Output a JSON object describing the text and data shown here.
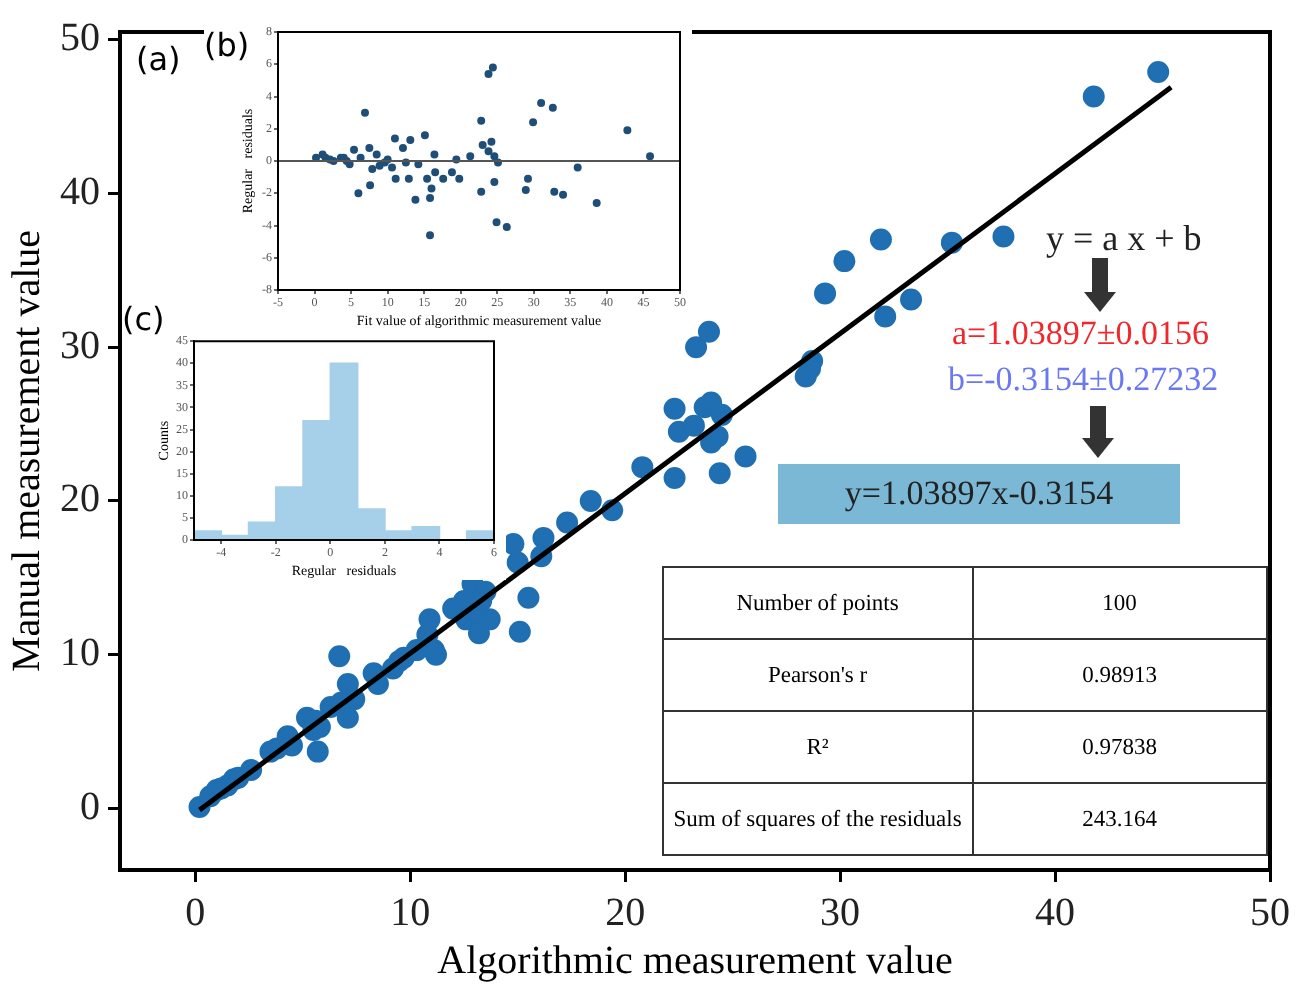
{
  "chart_data": [
    {
      "type": "scatter",
      "xlabel": "Algorithmic measurement value",
      "ylabel": "Manual measurement value",
      "xlim": [
        -3.5,
        50
      ],
      "ylim": [
        -4,
        50.5
      ],
      "xticks": [
        0,
        10,
        20,
        30,
        40,
        50
      ],
      "yticks": [
        0,
        10,
        20,
        30,
        40,
        50
      ],
      "series": [
        {
          "color": "#1f6fb2",
          "marker": "circle",
          "x": [
            0.2,
            0.7,
            1,
            1.2,
            1.5,
            1.8,
            2,
            2.6,
            3.5,
            3.8,
            4.3,
            4.5,
            5.2,
            5.6,
            5.5,
            5.8,
            5.7,
            6.3,
            6.7,
            6.8,
            7.1,
            7.1,
            7.4,
            8.3,
            8.5,
            9.2,
            9.5,
            9.7,
            10.3,
            10.8,
            10.9,
            11.2,
            11.1,
            12,
            12.5,
            12.6,
            12.9,
            13.1,
            13.2,
            13.5,
            13.3,
            13.7,
            14.8,
            15,
            15.5,
            16.2,
            16.1,
            15.1,
            17.3,
            18.4,
            19.4,
            20.8,
            22.3,
            22.5,
            23.2,
            23.3,
            23.9,
            23.7,
            24,
            24.5,
            24,
            24.3,
            22.3,
            24.4,
            25.6,
            28.4,
            28.7,
            28.6,
            29.3,
            30.2,
            31.9,
            32.1,
            33.3,
            35.2,
            37.6,
            41.8,
            44.8
          ],
          "values": [
            0.1,
            0.8,
            1.2,
            1.3,
            1.5,
            1.9,
            2,
            2.5,
            3.7,
            3.9,
            4.7,
            4.1,
            5.9,
            5.7,
            5.1,
            5.3,
            3.7,
            6.6,
            9.9,
            6.9,
            8.1,
            5.9,
            7.1,
            8.8,
            8.1,
            9.1,
            9.6,
            9.8,
            10.3,
            11.3,
            12.3,
            10,
            10.3,
            13,
            13.5,
            12.3,
            14.6,
            12.7,
            11.4,
            14.1,
            13.5,
            12.3,
            17.2,
            16,
            13.7,
            17.6,
            16.4,
            11.5,
            18.6,
            20,
            19.4,
            22.2,
            26,
            24.5,
            24.9,
            30,
            31,
            26.1,
            26.4,
            25.6,
            23.8,
            24.2,
            21.5,
            21.8,
            22.9,
            28.1,
            29.1,
            28.6,
            33.5,
            35.6,
            37,
            32,
            33.1,
            36.8,
            37.2,
            46.3,
            47.9
          ]
        },
        {
          "type": "line",
          "color": "#000000",
          "x": [
            0.2,
            45.4
          ],
          "values": [
            -0.1,
            46.9
          ]
        }
      ],
      "annotations": [
        "(a)",
        "y = a x + b",
        "a=1.03897±0.0156",
        "b=-0.3154±0.27232",
        "y=1.03897x-0.3154",
        "Number of points",
        "100",
        "Pearson's r",
        "0.98913",
        "R²",
        "0.97838",
        "Sum of squares of the residuals",
        "243.164"
      ]
    },
    {
      "type": "scatter",
      "xlabel": "Fit value of algorithmic measurement value",
      "ylabel": "Regular   residuals",
      "xlim": [
        -5,
        50
      ],
      "ylim": [
        -8,
        8
      ],
      "xticks": [
        -5,
        0,
        5,
        10,
        15,
        20,
        25,
        30,
        35,
        40,
        45,
        50
      ],
      "yticks": [
        -8,
        -6,
        -4,
        -2,
        0,
        2,
        4,
        6,
        8
      ],
      "marker": "circle",
      "series": [
        {
          "color": "#1f4e79",
          "x": [
            0.2,
            1.1,
            1.5,
            2.1,
            2.6,
            3.6,
            4,
            4.4,
            4.8,
            5.4,
            6,
            6.3,
            6.9,
            7.5,
            7.6,
            7.9,
            8.5,
            8.9,
            9.6,
            10,
            10.6,
            11,
            11.1,
            12.1,
            13.1,
            12.5,
            12.9,
            13.8,
            14.2,
            15.1,
            15.4,
            15.8,
            15.8,
            16,
            16.5,
            16.4,
            17.6,
            18.8,
            19.4,
            19.8,
            21.3,
            22.8,
            22.8,
            23,
            23.8,
            23.8,
            24.4,
            24.2,
            24.6,
            24.6,
            25.1,
            24.9,
            26.3,
            28.9,
            29.2,
            29.9,
            31,
            32.6,
            32.8,
            34,
            36,
            38.6,
            42.8,
            45.9
          ],
          "values": [
            0.2,
            0.4,
            0.2,
            0.1,
            0,
            0.2,
            0.2,
            0,
            -0.2,
            0.7,
            -2,
            0.2,
            3,
            0.8,
            -1.5,
            -0.5,
            0.4,
            -0.3,
            -0.1,
            0.1,
            -0.4,
            1.4,
            -1.1,
            0.8,
            1.3,
            -0.1,
            -1.1,
            -2.4,
            -0.2,
            1.6,
            -1.1,
            -2.3,
            -4.6,
            -1.7,
            -0.7,
            0.4,
            -1.1,
            -0.7,
            0.1,
            -1.1,
            0.3,
            2.5,
            -1.9,
            1,
            0.6,
            5.4,
            5.8,
            1.2,
            0.3,
            -1.3,
            -0.1,
            -3.8,
            -4.1,
            -1.8,
            -1.1,
            2.4,
            3.6,
            3.3,
            -1.9,
            -2.1,
            -0.4,
            -2.6,
            1.9,
            0.3
          ]
        }
      ],
      "ref_lines": [
        {
          "axis": "y",
          "value": 0,
          "color": "#555555"
        }
      ],
      "annotations": [
        "(b)"
      ]
    },
    {
      "type": "histogram",
      "xlabel": "Regular   residuals",
      "ylabel": "Counts",
      "bins": [
        -5,
        -4,
        -3,
        -2,
        -1,
        0,
        1,
        2,
        3,
        4,
        5,
        6
      ],
      "values": [
        2,
        1,
        4,
        12,
        27,
        40,
        7,
        2,
        3,
        0,
        2
      ],
      "color": "#a6cfea",
      "xlim": [
        -5,
        6
      ],
      "ylim": [
        0,
        45
      ],
      "xticks": [
        -4,
        -2,
        0,
        2,
        4,
        6
      ],
      "yticks": [
        0,
        5,
        10,
        15,
        20,
        25,
        30,
        35,
        40,
        45
      ],
      "annotations": [
        "(c)"
      ]
    }
  ]
}
